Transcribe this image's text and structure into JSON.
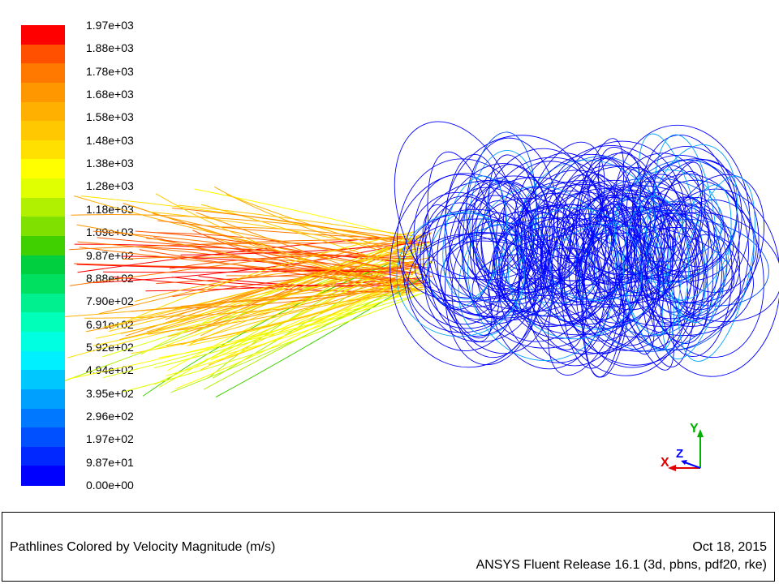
{
  "colorbar": {
    "colors": [
      "#0000ff",
      "#0028ff",
      "#0050ff",
      "#0078ff",
      "#00a0ff",
      "#00c8ff",
      "#00f0ff",
      "#00ffe0",
      "#00ffb8",
      "#00f090",
      "#00e060",
      "#00d040",
      "#40d000",
      "#80e000",
      "#b0f000",
      "#e0ff00",
      "#ffff00",
      "#ffe000",
      "#ffc800",
      "#ffb000",
      "#ff9800",
      "#ff7800",
      "#ff5000",
      "#ff0000"
    ],
    "labels": [
      "1.97e+03",
      "1.88e+03",
      "1.78e+03",
      "1.68e+03",
      "1.58e+03",
      "1.48e+03",
      "1.38e+03",
      "1.28e+03",
      "1.18e+03",
      "1.09e+03",
      "9.87e+02",
      "8.88e+02",
      "7.90e+02",
      "6.91e+02",
      "5.92e+02",
      "4.94e+02",
      "3.95e+02",
      "2.96e+02",
      "1.97e+02",
      "9.87e+01",
      "0.00e+00"
    ]
  },
  "axes": {
    "x": "X",
    "y": "Y",
    "z": "Z"
  },
  "footer": {
    "title": "Pathlines Colored by Velocity Magnitude (m/s)",
    "date": "Oct 18, 2015",
    "release": "ANSYS Fluent Release 16.1 (3d, pbns, pdf20, rke)"
  }
}
